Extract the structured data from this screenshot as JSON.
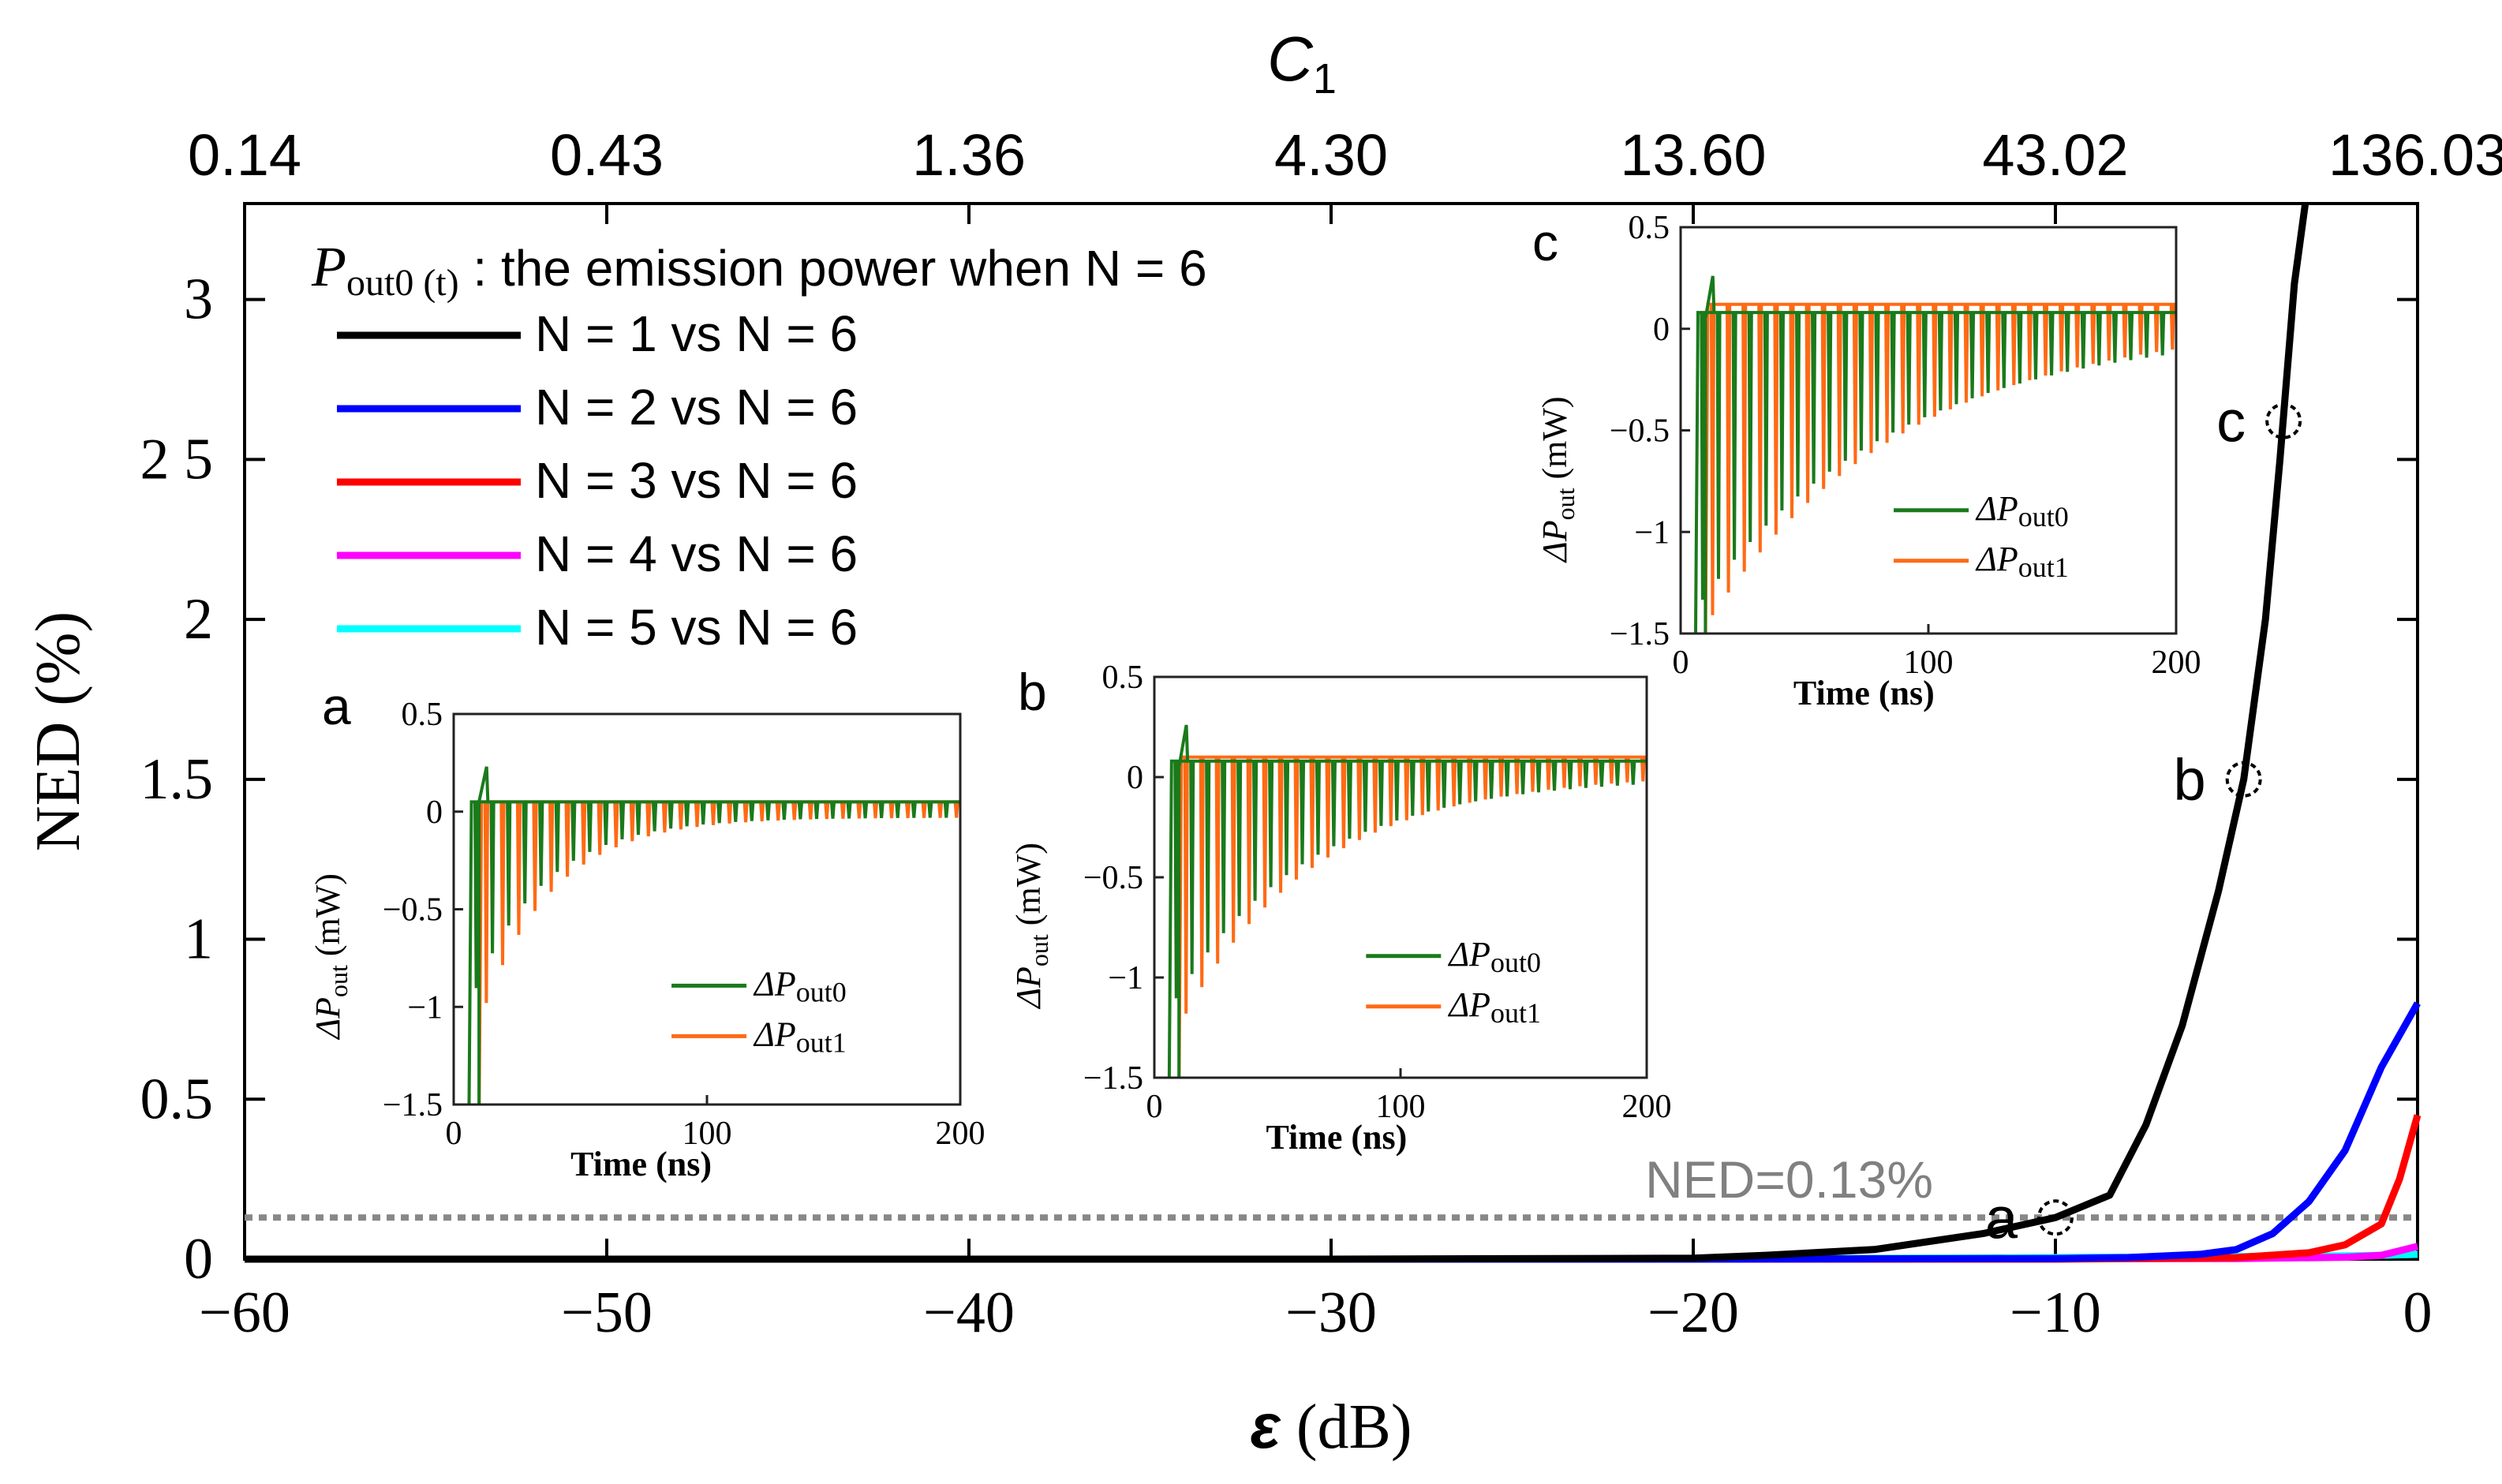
{
  "chart_data": {
    "type": "line",
    "xlabel_sym": "ε",
    "xlabel_unit": " (dB)",
    "ylabel": "NED (%)",
    "top_axis": {
      "label_main": "C",
      "label_sub": "1",
      "ticks": [
        "0.14",
        "0.43",
        "1.36",
        "4.30",
        "13.60",
        "43.02",
        "136.03"
      ],
      "tick_eps": [
        -60,
        -50,
        -40,
        -30,
        -20,
        -10,
        0
      ]
    },
    "xlim": [
      -60,
      0
    ],
    "ylim": [
      0,
      3.3
    ],
    "xticks": [
      {
        "v": -60,
        "label": "−60"
      },
      {
        "v": -50,
        "label": "−50"
      },
      {
        "v": -40,
        "label": "−40"
      },
      {
        "v": -30,
        "label": "−30"
      },
      {
        "v": -20,
        "label": "−20"
      },
      {
        "v": -10,
        "label": "−10"
      },
      {
        "v": 0,
        "label": "0"
      }
    ],
    "yticks": [
      {
        "v": 0,
        "label": "0"
      },
      {
        "v": 0.5,
        "label": "0.5"
      },
      {
        "v": 1,
        "label": "1"
      },
      {
        "v": 1.5,
        "label": "1.5"
      },
      {
        "v": 2,
        "label": "2"
      },
      {
        "v": 2.5,
        "label": "2 5"
      },
      {
        "v": 3,
        "label": "3"
      }
    ],
    "legend_title_sym": "P",
    "legend_title_sub": "out0 (t)",
    "legend_title_text": " : the emission power when N = 6",
    "series": [
      {
        "name": "N = 1 vs N = 6",
        "color": "#000000",
        "x": [
          -60,
          -50,
          -40,
          -30,
          -20,
          -18,
          -15,
          -12,
          -10,
          -8.5,
          -7.5,
          -6.5,
          -5.5,
          -4.8,
          -4.2,
          -3.8,
          -3.4,
          -3.1
        ],
        "y": [
          0,
          0,
          0,
          0,
          0.003,
          0.012,
          0.03,
          0.08,
          0.13,
          0.2,
          0.42,
          0.73,
          1.15,
          1.5,
          2.0,
          2.5,
          3.05,
          3.3
        ]
      },
      {
        "name": "N = 2 vs N = 6",
        "color": "#0000ff",
        "x": [
          -60,
          -20,
          -10,
          -8,
          -6,
          -5,
          -4,
          -3,
          -2,
          -1,
          0
        ],
        "y": [
          0,
          0,
          0.002,
          0.005,
          0.015,
          0.03,
          0.08,
          0.18,
          0.34,
          0.6,
          0.8
        ]
      },
      {
        "name": "N = 3 vs N = 6",
        "color": "#ff0000",
        "x": [
          -60,
          -20,
          -10,
          -5,
          -3,
          -2,
          -1,
          -0.5,
          0
        ],
        "y": [
          0,
          0,
          0,
          0.005,
          0.02,
          0.045,
          0.11,
          0.25,
          0.45
        ]
      },
      {
        "name": "N = 4 vs N = 6",
        "color": "#ff00ff",
        "x": [
          -60,
          -20,
          -5,
          -2,
          -1,
          0
        ],
        "y": [
          0,
          0,
          0.002,
          0.006,
          0.012,
          0.04
        ]
      },
      {
        "name": "N = 5 vs N = 6",
        "color": "#00ffff",
        "x": [
          -60,
          -20,
          -10,
          -5,
          -2,
          -1,
          0
        ],
        "y": [
          0,
          0,
          0.005,
          0.008,
          0.01,
          0.012,
          0.015
        ]
      }
    ],
    "threshold": {
      "label": "NED=0.13%",
      "value": 0.13
    },
    "markers": [
      {
        "label": "a",
        "x": -10,
        "y": 0.13
      },
      {
        "label": "b",
        "x": -4.8,
        "y": 1.5
      },
      {
        "label": "c",
        "x": -3.7,
        "y": 2.62
      }
    ],
    "insets": [
      {
        "label": "a",
        "xlim": [
          0,
          200
        ],
        "ylim": [
          -1.5,
          0.5
        ],
        "xticks": [
          "0",
          "100",
          "200"
        ],
        "yticks": [
          "0.5",
          "0",
          "−0.5",
          "−1",
          "−1.5"
        ],
        "xlabel": "Time (ns)",
        "ylabel": "ΔP",
        "ylabel_sub": "out",
        "ylabel_unit": " (mW)",
        "legend": [
          {
            "sym": "ΔP",
            "sub": "out0",
            "color": "#1a7a1a"
          },
          {
            "sym": "ΔP",
            "sub": "out1",
            "color": "#ff6a14"
          }
        ],
        "steady0": 0.05,
        "steady1": 0.05,
        "dip": 0.95,
        "tau": 28
      },
      {
        "label": "b",
        "xlim": [
          0,
          200
        ],
        "ylim": [
          -1.5,
          0.5
        ],
        "xticks": [
          "0",
          "100",
          "200"
        ],
        "yticks": [
          "0.5",
          "0",
          "−0.5",
          "−1",
          "−1.5"
        ],
        "xlabel": "Time (ns)",
        "ylabel": "ΔP",
        "ylabel_sub": "out",
        "ylabel_unit": " (mW)",
        "legend": [
          {
            "sym": "ΔP",
            "sub": "out0",
            "color": "#1a7a1a"
          },
          {
            "sym": "ΔP",
            "sub": "out1",
            "color": "#ff6a14"
          }
        ],
        "steady0": 0.08,
        "steady1": 0.1,
        "dip": 1.2,
        "tau": 55
      },
      {
        "label": "c",
        "xlim": [
          0,
          200
        ],
        "ylim": [
          -1.5,
          0.5
        ],
        "xticks": [
          "0",
          "100",
          "200"
        ],
        "yticks": [
          "0.5",
          "0",
          "−0.5",
          "−1",
          "−1.5"
        ],
        "xlabel": "Time (ns)",
        "ylabel": "ΔP",
        "ylabel_sub": "out",
        "ylabel_unit": " (mW)",
        "legend": [
          {
            "sym": "ΔP",
            "sub": "out0",
            "color": "#1a7a1a"
          },
          {
            "sym": "ΔP",
            "sub": "out1",
            "color": "#ff6a14"
          }
        ],
        "steady0": 0.08,
        "steady1": 0.12,
        "dip": 1.45,
        "tau": 80
      }
    ]
  }
}
